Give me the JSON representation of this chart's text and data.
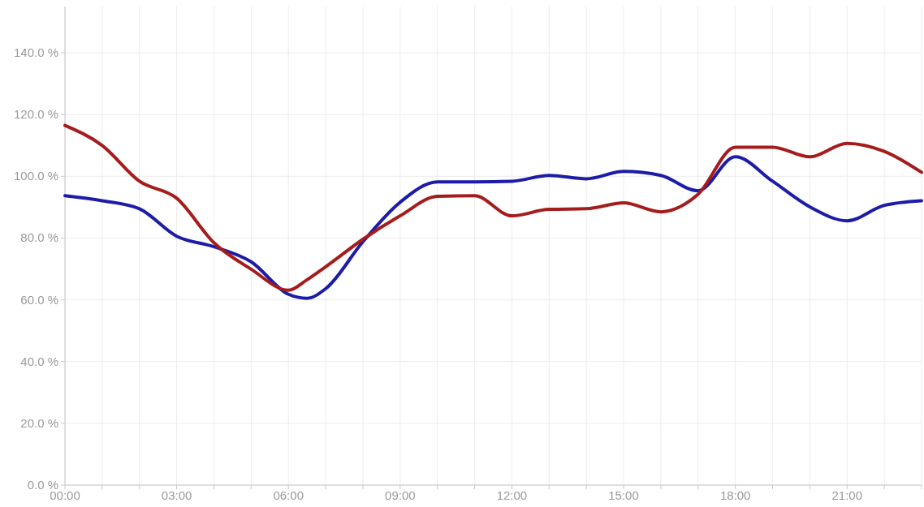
{
  "chart_data": {
    "type": "line",
    "x": [
      0,
      1,
      2,
      3,
      4,
      5,
      6,
      6.5,
      7,
      8,
      9,
      10,
      11,
      12,
      13,
      14,
      15,
      16,
      17,
      18,
      19,
      20,
      21,
      22,
      23
    ],
    "series": [
      {
        "color": "#1c1ca8",
        "values": [
          93.7,
          92.1,
          89.5,
          80.6,
          77.2,
          72.3,
          61.8,
          60.5,
          63.6,
          78.8,
          91.6,
          98.2,
          98.2,
          98.4,
          100.3,
          99.2,
          101.6,
          100.3,
          95.3,
          106.3,
          98.4,
          90.1,
          85.6,
          90.6,
          92.1
        ]
      },
      {
        "color": "#a51c1c",
        "values": [
          116.5,
          110,
          98.4,
          92.9,
          78.5,
          69.9,
          63.1,
          66.5,
          70.7,
          79.6,
          87.2,
          93.5,
          93.7,
          87.2,
          89.3,
          89.5,
          91.4,
          88.5,
          94.2,
          109.4,
          109.4,
          106.3,
          110.7,
          108.1,
          101.3
        ]
      }
    ],
    "xlim": [
      0,
      23
    ],
    "xticks": [
      {
        "value": 0,
        "label": "00:00"
      },
      {
        "value": 1,
        "label": null
      },
      {
        "value": 2,
        "label": null
      },
      {
        "value": 3,
        "label": "03:00"
      },
      {
        "value": 4,
        "label": null
      },
      {
        "value": 5,
        "label": null
      },
      {
        "value": 6,
        "label": "06:00"
      },
      {
        "value": 7,
        "label": null
      },
      {
        "value": 8,
        "label": null
      },
      {
        "value": 9,
        "label": "09:00"
      },
      {
        "value": 10,
        "label": null
      },
      {
        "value": 11,
        "label": null
      },
      {
        "value": 12,
        "label": "12:00"
      },
      {
        "value": 13,
        "label": null
      },
      {
        "value": 14,
        "label": null
      },
      {
        "value": 15,
        "label": "15:00"
      },
      {
        "value": 16,
        "label": null
      },
      {
        "value": 17,
        "label": null
      },
      {
        "value": 18,
        "label": "18:00"
      },
      {
        "value": 19,
        "label": null
      },
      {
        "value": 20,
        "label": null
      },
      {
        "value": 21,
        "label": "21:00"
      },
      {
        "value": 22,
        "label": null
      },
      {
        "value": 23,
        "label": null
      }
    ],
    "ylim": [
      0,
      155
    ],
    "yticks": [
      {
        "value": 0,
        "label": "0.0 %"
      },
      {
        "value": 20,
        "label": "20.0 %"
      },
      {
        "value": 40,
        "label": "40.0 %"
      },
      {
        "value": 60,
        "label": "60.0 %"
      },
      {
        "value": 80,
        "label": "80.0 %"
      },
      {
        "value": 100,
        "label": "100.0 %"
      },
      {
        "value": 120,
        "label": "120.0 %"
      },
      {
        "value": 140,
        "label": "140.0 %"
      }
    ],
    "grid": true,
    "marker": "none",
    "line_style": "solid"
  }
}
